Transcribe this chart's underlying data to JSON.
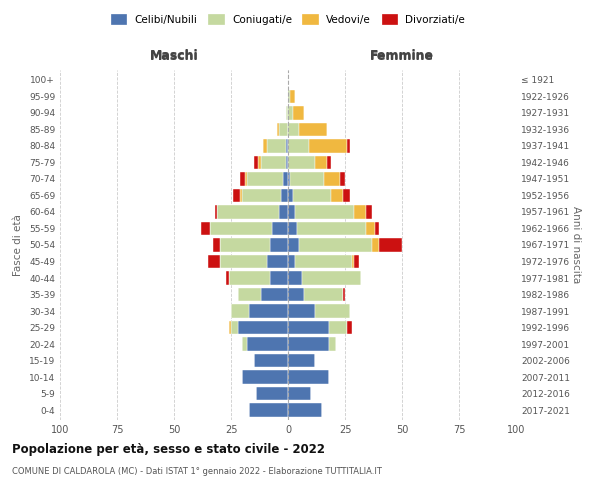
{
  "age_groups": [
    "0-4",
    "5-9",
    "10-14",
    "15-19",
    "20-24",
    "25-29",
    "30-34",
    "35-39",
    "40-44",
    "45-49",
    "50-54",
    "55-59",
    "60-64",
    "65-69",
    "70-74",
    "75-79",
    "80-84",
    "85-89",
    "90-94",
    "95-99",
    "100+"
  ],
  "birth_years": [
    "2017-2021",
    "2012-2016",
    "2007-2011",
    "2002-2006",
    "1997-2001",
    "1992-1996",
    "1987-1991",
    "1982-1986",
    "1977-1981",
    "1972-1976",
    "1967-1971",
    "1962-1966",
    "1957-1961",
    "1952-1956",
    "1947-1951",
    "1942-1946",
    "1937-1941",
    "1932-1936",
    "1927-1931",
    "1922-1926",
    "≤ 1921"
  ],
  "maschi": {
    "celibi": [
      17,
      14,
      20,
      15,
      18,
      22,
      17,
      12,
      8,
      9,
      8,
      7,
      4,
      3,
      2,
      1,
      1,
      0,
      0,
      0,
      0
    ],
    "coniugati": [
      0,
      0,
      0,
      0,
      2,
      3,
      8,
      10,
      18,
      21,
      22,
      27,
      27,
      17,
      16,
      11,
      8,
      4,
      1,
      0,
      0
    ],
    "vedovi": [
      0,
      0,
      0,
      0,
      0,
      1,
      0,
      0,
      0,
      0,
      0,
      0,
      0,
      1,
      1,
      1,
      2,
      1,
      0,
      0,
      0
    ],
    "divorziati": [
      0,
      0,
      0,
      0,
      0,
      0,
      0,
      0,
      1,
      5,
      3,
      4,
      1,
      3,
      2,
      2,
      0,
      0,
      0,
      0,
      0
    ]
  },
  "femmine": {
    "nubili": [
      15,
      10,
      18,
      12,
      18,
      18,
      12,
      7,
      6,
      3,
      5,
      4,
      3,
      2,
      1,
      0,
      0,
      0,
      0,
      0,
      0
    ],
    "coniugate": [
      0,
      0,
      0,
      0,
      3,
      8,
      15,
      17,
      26,
      25,
      32,
      30,
      26,
      17,
      15,
      12,
      9,
      5,
      2,
      1,
      0
    ],
    "vedove": [
      0,
      0,
      0,
      0,
      0,
      0,
      0,
      0,
      0,
      1,
      3,
      4,
      5,
      5,
      7,
      5,
      17,
      12,
      5,
      2,
      0
    ],
    "divorziate": [
      0,
      0,
      0,
      0,
      0,
      2,
      0,
      1,
      0,
      2,
      10,
      2,
      3,
      3,
      2,
      2,
      1,
      0,
      0,
      0,
      0
    ]
  },
  "colors": {
    "celibi": "#4e75b0",
    "coniugati": "#c5d9a0",
    "vedovi": "#f0b840",
    "divorziati": "#cc1111"
  },
  "title": "Popolazione per età, sesso e stato civile - 2022",
  "subtitle": "COMUNE DI CALDAROLA (MC) - Dati ISTAT 1° gennaio 2022 - Elaborazione TUTTITALIA.IT",
  "xlabel_left": "Maschi",
  "xlabel_right": "Femmine",
  "ylabel_left": "Fasce di età",
  "ylabel_right": "Anni di nascita",
  "xlim": 100,
  "xticks": [
    -100,
    -75,
    -50,
    -25,
    0,
    25,
    50,
    75,
    100
  ],
  "xtick_labels": [
    "100",
    "75",
    "50",
    "25",
    "0",
    "25",
    "50",
    "75",
    "100"
  ],
  "legend_labels": [
    "Celibi/Nubili",
    "Coniugati/e",
    "Vedovi/e",
    "Divorziati/e"
  ],
  "background_color": "#ffffff"
}
